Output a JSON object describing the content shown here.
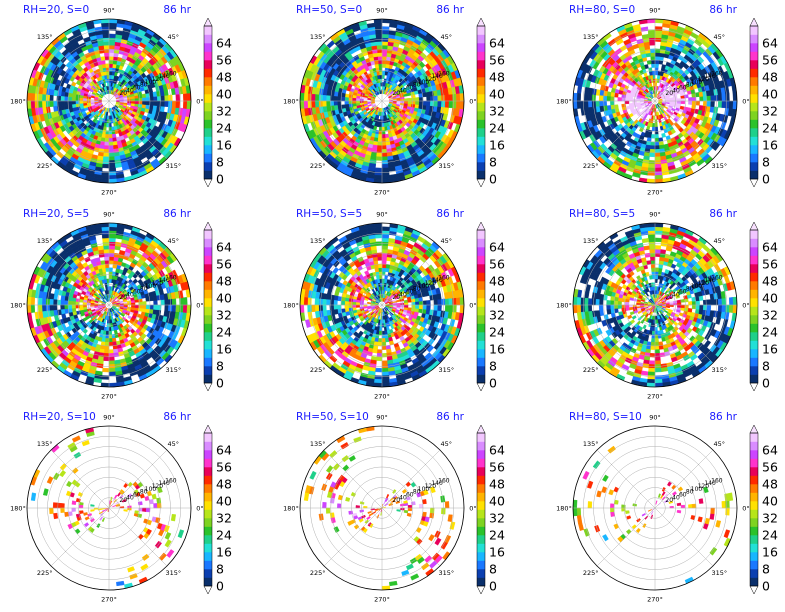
{
  "colorbar": {
    "ticks": [
      "0",
      "8",
      "16",
      "24",
      "32",
      "40",
      "48",
      "56",
      "64"
    ],
    "colors": [
      "#0a2f6b",
      "#0b3fb0",
      "#1a78ff",
      "#19b6ff",
      "#22e0d6",
      "#1fd08a",
      "#2bc22b",
      "#7ed321",
      "#b6e51a",
      "#ffe100",
      "#ffb400",
      "#ff7a00",
      "#ff2a00",
      "#e8005a",
      "#ff33cc",
      "#cc44ff",
      "#d98cff",
      "#f2c6ff"
    ]
  },
  "polar_axes": {
    "angle_labels": [
      "90°",
      "45°",
      "0°",
      "315°",
      "270°",
      "225°",
      "180°",
      "135°"
    ],
    "radial_labels": [
      "20",
      "40",
      "60",
      "80",
      "100",
      "120",
      "140",
      "160"
    ]
  },
  "chart_data": [
    {
      "type": "heatmap",
      "title_left": "RH=20, S=0",
      "title_right": "86 hr"
    },
    {
      "type": "heatmap",
      "title_left": "RH=50, S=0",
      "title_right": "86 hr"
    },
    {
      "type": "heatmap",
      "title_left": "RH=80, S=0",
      "title_right": "86 hr"
    },
    {
      "type": "heatmap",
      "title_left": "RH=20, S=5",
      "title_right": "86 hr"
    },
    {
      "type": "heatmap",
      "title_left": "RH=50, S=5",
      "title_right": "86 hr"
    },
    {
      "type": "heatmap",
      "title_left": "RH=80, S=5",
      "title_right": "86 hr"
    },
    {
      "type": "heatmap",
      "title_left": "RH=20, S=10",
      "title_right": "86 hr"
    },
    {
      "type": "heatmap",
      "title_left": "RH=50, S=10",
      "title_right": "86 hr"
    },
    {
      "type": "heatmap",
      "title_left": "RH=80, S=10",
      "title_right": "86 hr"
    }
  ]
}
